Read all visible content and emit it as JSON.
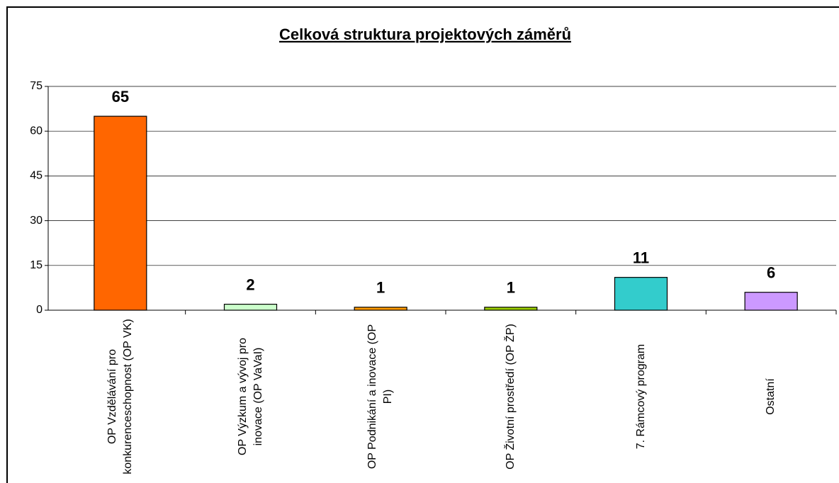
{
  "chart_data": {
    "type": "bar",
    "title": "Celková struktura projektových záměrů",
    "categories": [
      "OP Vzdělávání pro konkurenceschopnost (OP VK)",
      "OP Výzkum a vývoj pro inovace (OP VaVaI)",
      "OP Podnikání a inovace (OP PI)",
      "OP Životní prostředí (OP ŽP)",
      "7. Rámcový program",
      "Ostatní"
    ],
    "values": [
      65,
      2,
      1,
      1,
      11,
      6
    ],
    "colors": [
      "#ff6600",
      "#ccffcc",
      "#ff9900",
      "#99cc00",
      "#33cccc",
      "#cc99ff"
    ],
    "ylim": [
      0,
      75
    ],
    "yticks": [
      0,
      15,
      30,
      45,
      60,
      75
    ],
    "grid": true
  }
}
